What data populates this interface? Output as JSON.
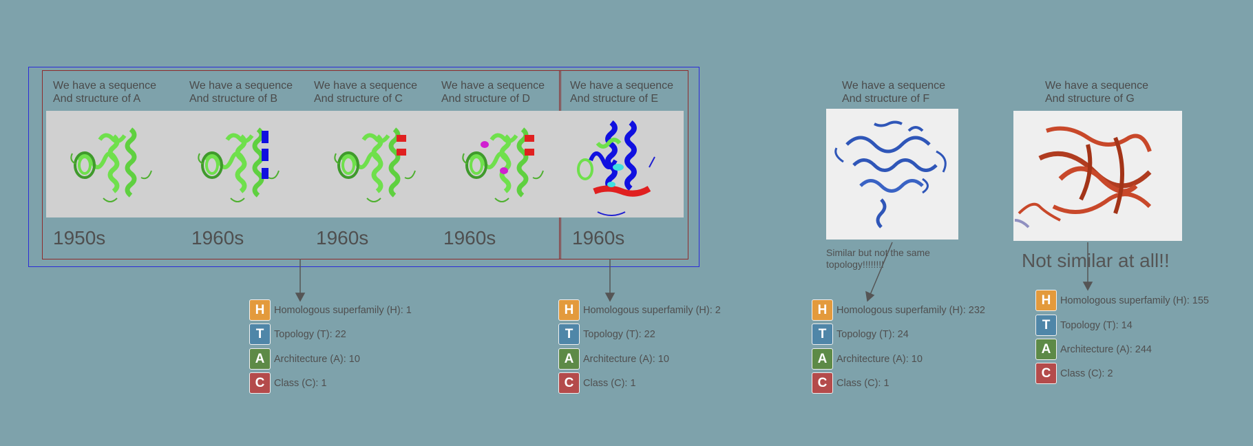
{
  "captions": {
    "a": {
      "line1": "We have a sequence",
      "line2": "And structure of A"
    },
    "b": {
      "line1": "We have a sequence",
      "line2": "And structure of B"
    },
    "c": {
      "line1": "We have a sequence",
      "line2": "And structure of C"
    },
    "d": {
      "line1": "We have a sequence",
      "line2": "And structure of D"
    },
    "e": {
      "line1": "We have a sequence",
      "line2": "And structure of E"
    },
    "f": {
      "line1": "We have a sequence",
      "line2": "And structure of F"
    },
    "g": {
      "line1": "We have a sequence",
      "line2": "And structure of G"
    }
  },
  "decades": {
    "a": "1950s",
    "b": "1960s",
    "c": "1960s",
    "d": "1960s",
    "e": "1960s"
  },
  "notes": {
    "f": "Similar but not the same topology!!!!!!!!",
    "g": "Not similar at all!!"
  },
  "cath": {
    "group1": {
      "h": "Homologous superfamily (H): 1",
      "t": "Topology  (T): 22",
      "a": "Architecture (A): 10",
      "c": "Class (C): 1"
    },
    "group2": {
      "h": "Homologous superfamily (H): 2",
      "t": "Topology  (T): 22",
      "a": "Architecture (A): 10",
      "c": "Class (C): 1"
    },
    "group3": {
      "h": "Homologous superfamily (H): 232",
      "t": "Topology  (T): 24",
      "a": "Architecture (A): 10",
      "c": "Class (C): 1"
    },
    "group4": {
      "h": "Homologous superfamily (H): 155",
      "t": "Topology  (T): 14",
      "a": "Architecture (A): 244",
      "c": "Class (C): 2"
    }
  },
  "badges": {
    "h": "H",
    "t": "T",
    "a": "A",
    "c": "C"
  },
  "colors": {
    "background": "#7ea2ab",
    "outer_box": "#2a2bd8",
    "inner_box": "#8e2b2b",
    "protein_green": "#6fe04c",
    "protein_blue": "#2f56b8",
    "protein_orange": "#c8482a",
    "highlight_red": "#e02020",
    "highlight_magenta": "#d020d0",
    "highlight_cyan": "#40e0e0"
  }
}
